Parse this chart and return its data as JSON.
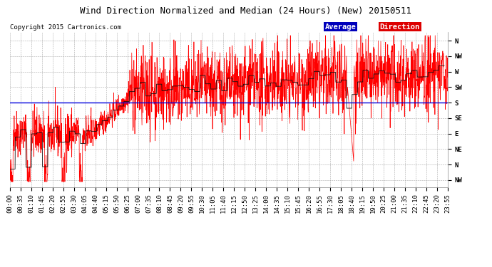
{
  "title": "Wind Direction Normalized and Median (24 Hours) (New) 20150511",
  "copyright": "Copyright 2015 Cartronics.com",
  "ytick_labels": [
    "N",
    "NW",
    "W",
    "SW",
    "S",
    "SE",
    "E",
    "NE",
    "N",
    "NW"
  ],
  "ytick_values": [
    360,
    315,
    270,
    225,
    180,
    135,
    90,
    45,
    0,
    -45
  ],
  "ylim": [
    -65,
    385
  ],
  "average_line_y": 180,
  "background_color": "#ffffff",
  "plot_bg_color": "#ffffff",
  "grid_color": "#aaaaaa",
  "line_color_red": "#ff0000",
  "line_color_dark": "#111111",
  "avg_line_color": "#0000dd",
  "legend_avg_bg": "#0000bb",
  "legend_dir_bg": "#dd0000",
  "xtick_labels": [
    "00:00",
    "00:35",
    "01:10",
    "01:45",
    "02:20",
    "02:55",
    "03:30",
    "04:05",
    "04:40",
    "05:15",
    "05:50",
    "06:25",
    "07:00",
    "07:35",
    "08:10",
    "08:45",
    "09:20",
    "09:55",
    "10:30",
    "11:05",
    "11:40",
    "12:15",
    "12:50",
    "13:25",
    "14:00",
    "14:35",
    "15:10",
    "15:45",
    "16:20",
    "16:55",
    "17:30",
    "18:05",
    "18:40",
    "19:15",
    "19:50",
    "20:25",
    "21:00",
    "21:35",
    "22:10",
    "22:45",
    "23:20",
    "23:55"
  ],
  "num_xticks": 42,
  "title_fontsize": 9,
  "copyright_fontsize": 6.5,
  "tick_fontsize": 6.5,
  "legend_fontsize": 7.5
}
